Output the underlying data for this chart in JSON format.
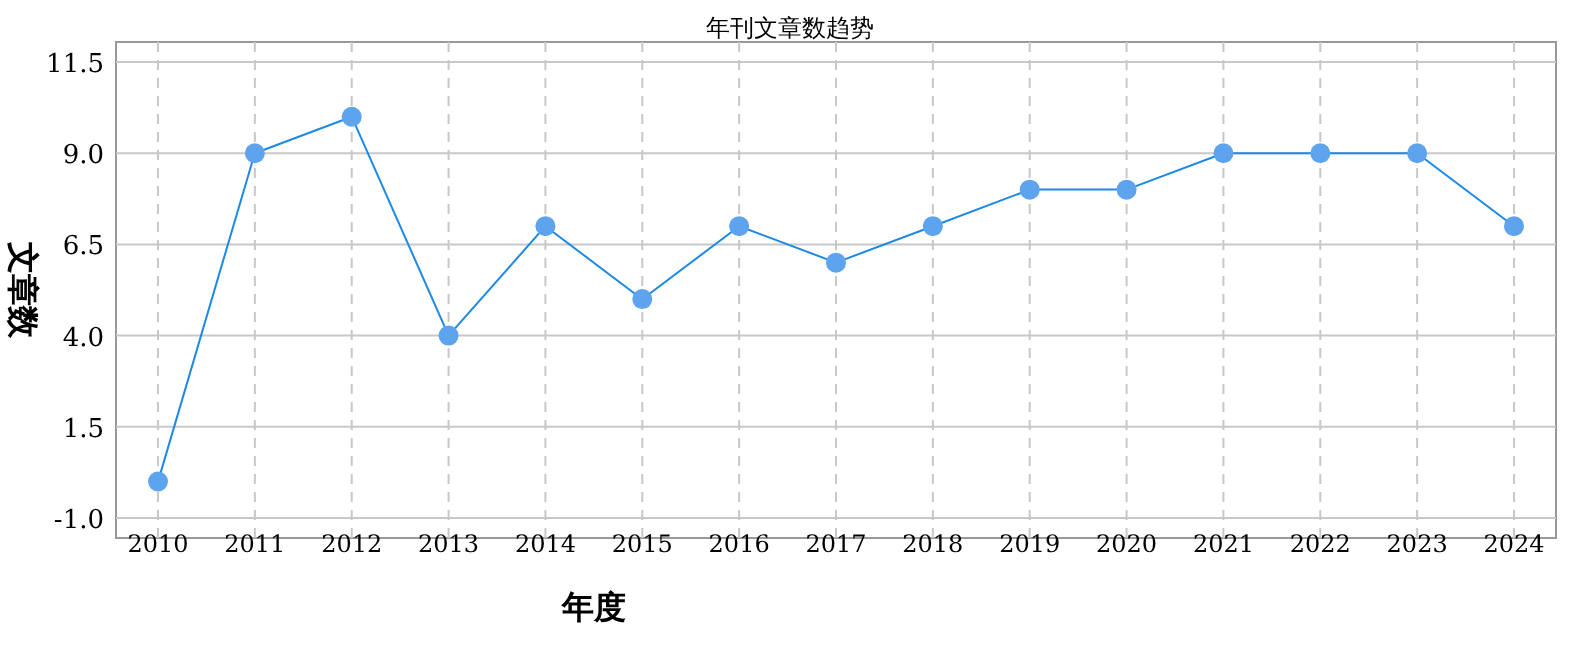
{
  "chart_data": {
    "type": "line",
    "title": "年刊文章数趋势",
    "xlabel": "年度",
    "ylabel": "文章数",
    "categories": [
      "2010",
      "2011",
      "2012",
      "2013",
      "2014",
      "2015",
      "2016",
      "2017",
      "2018",
      "2019",
      "2020",
      "2021",
      "2022",
      "2023",
      "2024"
    ],
    "series": [
      {
        "color": "#1e88e5",
        "values": [
          0,
          9,
          10,
          4,
          7,
          5,
          7,
          6,
          7,
          8,
          8,
          9,
          9,
          9,
          7
        ]
      }
    ],
    "ylim": [
      -1,
      11.5
    ],
    "yticks": [
      {
        "value": -1,
        "label": "-1.0"
      },
      {
        "value": 1.5,
        "label": "1.5"
      },
      {
        "value": 4,
        "label": "4.0"
      },
      {
        "value": 6.5,
        "label": "6.5"
      },
      {
        "value": 9,
        "label": "9.0"
      },
      {
        "value": 11.5,
        "label": "11.5"
      }
    ],
    "grid": true,
    "marker": "circle",
    "line_style": "solid"
  }
}
